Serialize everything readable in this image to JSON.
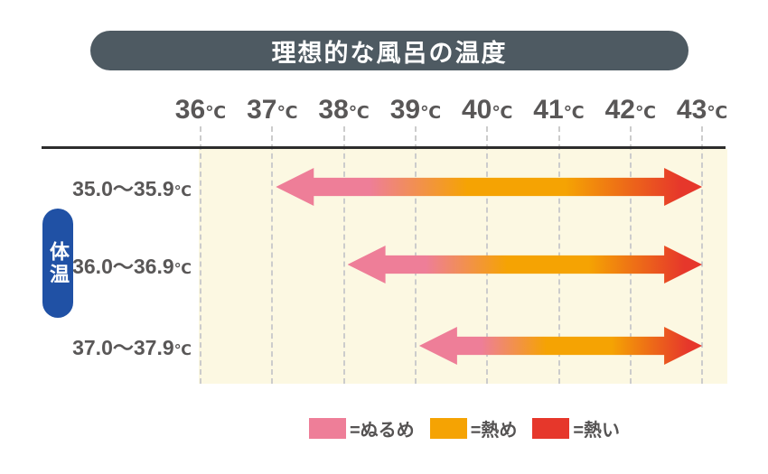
{
  "title": "理想的な風呂の温度",
  "y_axis_label": "体温",
  "colors": {
    "title_bg": "#4e5a62",
    "y_pill_bg": "#2051a5",
    "plot_bg": "#fcf8e2",
    "text_gray": "#595757",
    "axis_line": "#2d2d2d",
    "gridline": "#cccccc",
    "pink": "#ee7e98",
    "orange": "#f5a303",
    "red": "#e6372b"
  },
  "chart_data": {
    "type": "bar",
    "subtype": "horizontal-gradient-range-arrows",
    "title": "理想的な風呂の温度",
    "ylabel": "体温",
    "x_unit": "℃",
    "x_range": [
      36,
      43
    ],
    "x_ticks": [
      "36℃",
      "37℃",
      "38℃",
      "39℃",
      "40℃",
      "41℃",
      "42℃",
      "43℃"
    ],
    "grid": "dashed-vertical",
    "categories": [
      "35.0〜35.9℃",
      "36.0〜36.9℃",
      "37.0〜37.9℃"
    ],
    "series": [
      {
        "name": "35.0〜35.9℃",
        "range_start": 37,
        "range_end": 43
      },
      {
        "name": "36.0〜36.9℃",
        "range_start": 38,
        "range_end": 43
      },
      {
        "name": "37.0〜37.9℃",
        "range_start": 39,
        "range_end": 43
      }
    ],
    "legend": [
      {
        "label": "=ぬるめ",
        "color": "#ee7e98"
      },
      {
        "label": "=熱め",
        "color": "#f5a303"
      },
      {
        "label": "=熱い",
        "color": "#e6372b"
      }
    ],
    "legend_position": "bottom"
  }
}
